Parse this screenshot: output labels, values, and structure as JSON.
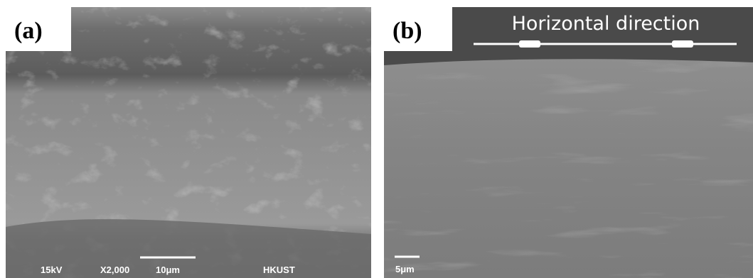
{
  "panels": [
    {
      "label": "(a)",
      "info": {
        "voltage": "15kV",
        "magnification": "X2,000",
        "scale": "10μm",
        "institution": "HKUST"
      }
    },
    {
      "label": "(b)",
      "annotation": "Horizontal direction",
      "scale": "5μm"
    }
  ]
}
